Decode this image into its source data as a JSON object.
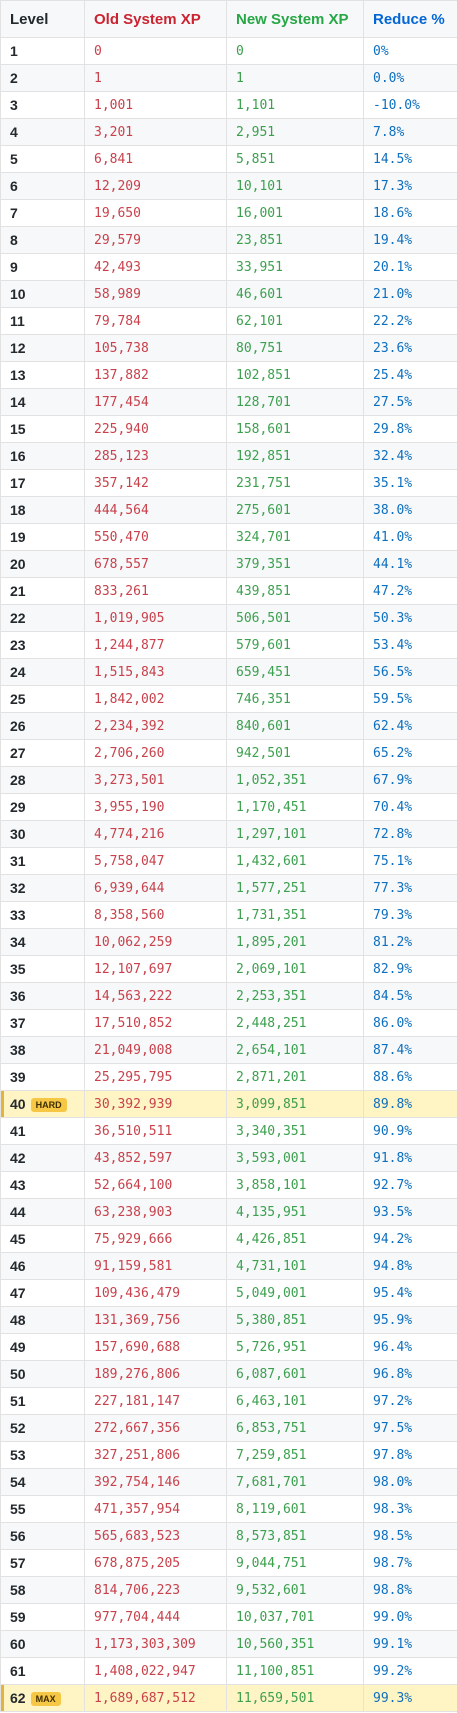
{
  "headers": {
    "level": "Level",
    "old_xp": "Old System XP",
    "new_xp": "New System XP",
    "reduce": "Reduce %"
  },
  "colors": {
    "old": "#c8414b",
    "new": "#3ca04e",
    "reduce": "#0d6fbf",
    "highlight_row": "#fff4c4",
    "badge": "#f6c744"
  },
  "rows": [
    {
      "level": "1",
      "old": "0",
      "new": "0",
      "reduce": "0%"
    },
    {
      "level": "2",
      "old": "1",
      "new": "1",
      "reduce": "0.0%"
    },
    {
      "level": "3",
      "old": "1,001",
      "new": "1,101",
      "reduce": "-10.0%"
    },
    {
      "level": "4",
      "old": "3,201",
      "new": "2,951",
      "reduce": "7.8%"
    },
    {
      "level": "5",
      "old": "6,841",
      "new": "5,851",
      "reduce": "14.5%"
    },
    {
      "level": "6",
      "old": "12,209",
      "new": "10,101",
      "reduce": "17.3%"
    },
    {
      "level": "7",
      "old": "19,650",
      "new": "16,001",
      "reduce": "18.6%"
    },
    {
      "level": "8",
      "old": "29,579",
      "new": "23,851",
      "reduce": "19.4%"
    },
    {
      "level": "9",
      "old": "42,493",
      "new": "33,951",
      "reduce": "20.1%"
    },
    {
      "level": "10",
      "old": "58,989",
      "new": "46,601",
      "reduce": "21.0%"
    },
    {
      "level": "11",
      "old": "79,784",
      "new": "62,101",
      "reduce": "22.2%"
    },
    {
      "level": "12",
      "old": "105,738",
      "new": "80,751",
      "reduce": "23.6%"
    },
    {
      "level": "13",
      "old": "137,882",
      "new": "102,851",
      "reduce": "25.4%"
    },
    {
      "level": "14",
      "old": "177,454",
      "new": "128,701",
      "reduce": "27.5%"
    },
    {
      "level": "15",
      "old": "225,940",
      "new": "158,601",
      "reduce": "29.8%"
    },
    {
      "level": "16",
      "old": "285,123",
      "new": "192,851",
      "reduce": "32.4%"
    },
    {
      "level": "17",
      "old": "357,142",
      "new": "231,751",
      "reduce": "35.1%"
    },
    {
      "level": "18",
      "old": "444,564",
      "new": "275,601",
      "reduce": "38.0%"
    },
    {
      "level": "19",
      "old": "550,470",
      "new": "324,701",
      "reduce": "41.0%"
    },
    {
      "level": "20",
      "old": "678,557",
      "new": "379,351",
      "reduce": "44.1%"
    },
    {
      "level": "21",
      "old": "833,261",
      "new": "439,851",
      "reduce": "47.2%"
    },
    {
      "level": "22",
      "old": "1,019,905",
      "new": "506,501",
      "reduce": "50.3%"
    },
    {
      "level": "23",
      "old": "1,244,877",
      "new": "579,601",
      "reduce": "53.4%"
    },
    {
      "level": "24",
      "old": "1,515,843",
      "new": "659,451",
      "reduce": "56.5%"
    },
    {
      "level": "25",
      "old": "1,842,002",
      "new": "746,351",
      "reduce": "59.5%"
    },
    {
      "level": "26",
      "old": "2,234,392",
      "new": "840,601",
      "reduce": "62.4%"
    },
    {
      "level": "27",
      "old": "2,706,260",
      "new": "942,501",
      "reduce": "65.2%"
    },
    {
      "level": "28",
      "old": "3,273,501",
      "new": "1,052,351",
      "reduce": "67.9%"
    },
    {
      "level": "29",
      "old": "3,955,190",
      "new": "1,170,451",
      "reduce": "70.4%"
    },
    {
      "level": "30",
      "old": "4,774,216",
      "new": "1,297,101",
      "reduce": "72.8%"
    },
    {
      "level": "31",
      "old": "5,758,047",
      "new": "1,432,601",
      "reduce": "75.1%"
    },
    {
      "level": "32",
      "old": "6,939,644",
      "new": "1,577,251",
      "reduce": "77.3%"
    },
    {
      "level": "33",
      "old": "8,358,560",
      "new": "1,731,351",
      "reduce": "79.3%"
    },
    {
      "level": "34",
      "old": "10,062,259",
      "new": "1,895,201",
      "reduce": "81.2%"
    },
    {
      "level": "35",
      "old": "12,107,697",
      "new": "2,069,101",
      "reduce": "82.9%"
    },
    {
      "level": "36",
      "old": "14,563,222",
      "new": "2,253,351",
      "reduce": "84.5%"
    },
    {
      "level": "37",
      "old": "17,510,852",
      "new": "2,448,251",
      "reduce": "86.0%"
    },
    {
      "level": "38",
      "old": "21,049,008",
      "new": "2,654,101",
      "reduce": "87.4%"
    },
    {
      "level": "39",
      "old": "25,295,795",
      "new": "2,871,201",
      "reduce": "88.6%"
    },
    {
      "level": "40",
      "badge": "HARD",
      "highlight": true,
      "old": "30,392,939",
      "new": "3,099,851",
      "reduce": "89.8%"
    },
    {
      "level": "41",
      "old": "36,510,511",
      "new": "3,340,351",
      "reduce": "90.9%"
    },
    {
      "level": "42",
      "old": "43,852,597",
      "new": "3,593,001",
      "reduce": "91.8%"
    },
    {
      "level": "43",
      "old": "52,664,100",
      "new": "3,858,101",
      "reduce": "92.7%"
    },
    {
      "level": "44",
      "old": "63,238,903",
      "new": "4,135,951",
      "reduce": "93.5%"
    },
    {
      "level": "45",
      "old": "75,929,666",
      "new": "4,426,851",
      "reduce": "94.2%"
    },
    {
      "level": "46",
      "old": "91,159,581",
      "new": "4,731,101",
      "reduce": "94.8%"
    },
    {
      "level": "47",
      "old": "109,436,479",
      "new": "5,049,001",
      "reduce": "95.4%"
    },
    {
      "level": "48",
      "old": "131,369,756",
      "new": "5,380,851",
      "reduce": "95.9%"
    },
    {
      "level": "49",
      "old": "157,690,688",
      "new": "5,726,951",
      "reduce": "96.4%"
    },
    {
      "level": "50",
      "old": "189,276,806",
      "new": "6,087,601",
      "reduce": "96.8%"
    },
    {
      "level": "51",
      "old": "227,181,147",
      "new": "6,463,101",
      "reduce": "97.2%"
    },
    {
      "level": "52",
      "old": "272,667,356",
      "new": "6,853,751",
      "reduce": "97.5%"
    },
    {
      "level": "53",
      "old": "327,251,806",
      "new": "7,259,851",
      "reduce": "97.8%"
    },
    {
      "level": "54",
      "old": "392,754,146",
      "new": "7,681,701",
      "reduce": "98.0%"
    },
    {
      "level": "55",
      "old": "471,357,954",
      "new": "8,119,601",
      "reduce": "98.3%"
    },
    {
      "level": "56",
      "old": "565,683,523",
      "new": "8,573,851",
      "reduce": "98.5%"
    },
    {
      "level": "57",
      "old": "678,875,205",
      "new": "9,044,751",
      "reduce": "98.7%"
    },
    {
      "level": "58",
      "old": "814,706,223",
      "new": "9,532,601",
      "reduce": "98.8%"
    },
    {
      "level": "59",
      "old": "977,704,444",
      "new": "10,037,701",
      "reduce": "99.0%"
    },
    {
      "level": "60",
      "old": "1,173,303,309",
      "new": "10,560,351",
      "reduce": "99.1%"
    },
    {
      "level": "61",
      "old": "1,408,022,947",
      "new": "11,100,851",
      "reduce": "99.2%"
    },
    {
      "level": "62",
      "badge": "MAX",
      "highlight": true,
      "old": "1,689,687,512",
      "new": "11,659,501",
      "reduce": "99.3%"
    }
  ]
}
